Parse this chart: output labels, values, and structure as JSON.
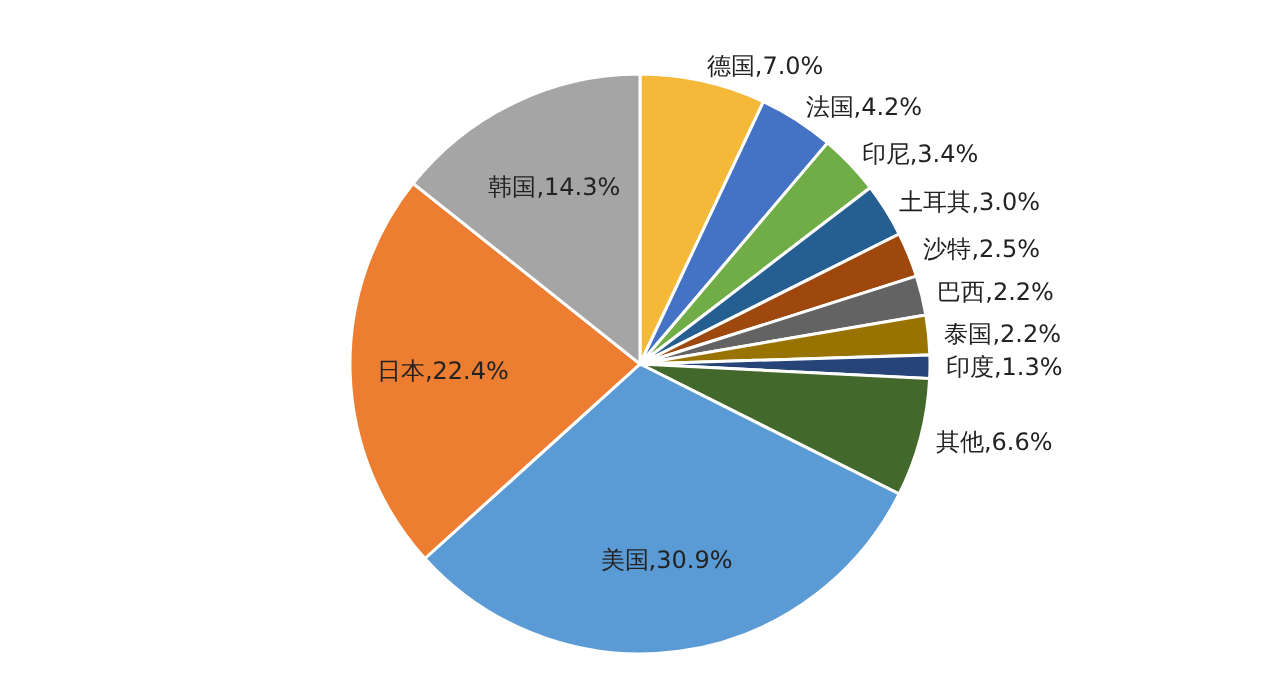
{
  "chart_data": {
    "type": "pie",
    "categories": [
      "德国",
      "法国",
      "印尼",
      "土耳其",
      "沙特",
      "巴西",
      "泰国",
      "印度",
      "其他",
      "美国",
      "日本",
      "韩国"
    ],
    "values": [
      7.0,
      4.2,
      3.4,
      3.0,
      2.5,
      2.2,
      2.2,
      1.3,
      6.6,
      30.9,
      22.4,
      14.3
    ],
    "colors": [
      "#f5b93a",
      "#4472c4",
      "#70ad47",
      "#255e91",
      "#9e480e",
      "#636363",
      "#997300",
      "#264478",
      "#43682b",
      "#5b9bd5",
      "#ed7d31",
      "#a5a5a5"
    ],
    "value_labels": [
      ",7.0%",
      ",4.2%",
      ",3.4%",
      ",3.0%",
      ",2.5%",
      ",2.2%",
      ",2.2%",
      ",1.3%",
      ",6.6%",
      ",30.9%",
      ",22.4%",
      ",14.3%"
    ]
  }
}
